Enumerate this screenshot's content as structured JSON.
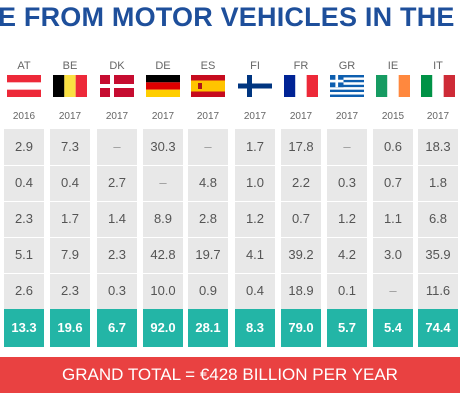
{
  "title": "E FROM MOTOR VEHICLES IN THE EU-",
  "banner": "GRAND TOTAL = €428 BILLION PER YEAR",
  "colors": {
    "title": "#1e4f9b",
    "band": "#e8e8e8",
    "total": "#23b5a6",
    "banner": "#e94141"
  },
  "chart_data": {
    "type": "table",
    "title": "E FROM MOTOR VEHICLES IN THE EU-",
    "countries": [
      {
        "code": "AT",
        "flag": "austria-flag",
        "year": "2016",
        "values": [
          "2.9",
          "0.4",
          "2.3",
          "5.1",
          "2.6"
        ],
        "total": "13.3"
      },
      {
        "code": "BE",
        "flag": "belgium-flag",
        "year": "2017",
        "values": [
          "7.3",
          "0.4",
          "1.7",
          "7.9",
          "2.3"
        ],
        "total": "19.6"
      },
      {
        "code": "DK",
        "flag": "denmark-flag",
        "year": "2017",
        "values": [
          "–",
          "2.7",
          "1.4",
          "2.3",
          "0.3"
        ],
        "total": "6.7"
      },
      {
        "code": "DE",
        "flag": "germany-flag",
        "year": "2017",
        "values": [
          "30.3",
          "–",
          "8.9",
          "42.8",
          "10.0"
        ],
        "total": "92.0"
      },
      {
        "code": "ES",
        "flag": "spain-flag",
        "year": "2017",
        "values": [
          "–",
          "4.8",
          "2.8",
          "19.7",
          "0.9"
        ],
        "total": "28.1"
      },
      {
        "code": "FI",
        "flag": "finland-flag",
        "year": "2017",
        "values": [
          "1.7",
          "1.0",
          "1.2",
          "4.1",
          "0.4"
        ],
        "total": "8.3"
      },
      {
        "code": "FR",
        "flag": "france-flag",
        "year": "2017",
        "values": [
          "17.8",
          "2.2",
          "0.7",
          "39.2",
          "18.9"
        ],
        "total": "79.0"
      },
      {
        "code": "GR",
        "flag": "greece-flag",
        "year": "2017",
        "values": [
          "–",
          "0.3",
          "1.2",
          "4.2",
          "0.1"
        ],
        "total": "5.7"
      },
      {
        "code": "IE",
        "flag": "ireland-flag",
        "year": "2015",
        "values": [
          "0.6",
          "0.7",
          "1.1",
          "3.0",
          "–"
        ],
        "total": "5.4"
      },
      {
        "code": "IT",
        "flag": "italy-flag",
        "year": "2017",
        "values": [
          "18.3",
          "1.8",
          "6.8",
          "35.9",
          "11.6"
        ],
        "total": "74.4"
      }
    ]
  }
}
